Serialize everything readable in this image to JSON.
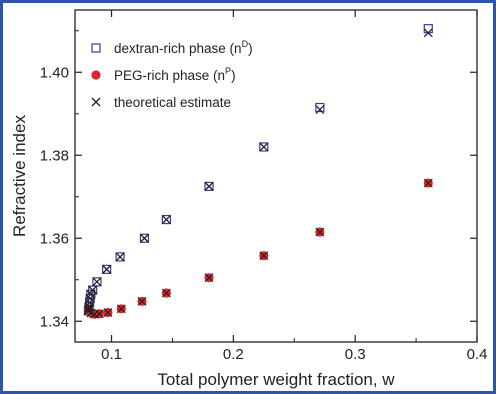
{
  "chart_data": {
    "type": "scatter",
    "xlabel": "Total polymer weight fraction, w",
    "ylabel": "Refractive index",
    "xlim": [
      0.07,
      0.4
    ],
    "ylim": [
      1.335,
      1.415
    ],
    "x_ticks": [
      0.1,
      0.2,
      0.3,
      0.4
    ],
    "x_tick_labels": [
      "0.1",
      "0.2",
      "0.3",
      "0.4"
    ],
    "y_ticks": [
      1.34,
      1.36,
      1.38,
      1.4
    ],
    "y_tick_labels": [
      "1.34",
      "1.36",
      "1.38",
      "1.40"
    ],
    "grid": false,
    "legend_position": "top-left",
    "series": [
      {
        "name": "dextran-rich phase (n",
        "name_sup": "D",
        "name_end": ")",
        "marker": "square-open",
        "color": "#3a3a9a",
        "points": [
          [
            0.081,
            1.3425
          ],
          [
            0.0815,
            1.3435
          ],
          [
            0.082,
            1.3445
          ],
          [
            0.0825,
            1.3455
          ],
          [
            0.083,
            1.3465
          ],
          [
            0.0845,
            1.3475
          ],
          [
            0.088,
            1.3495
          ],
          [
            0.096,
            1.3525
          ],
          [
            0.107,
            1.3555
          ],
          [
            0.127,
            1.36
          ],
          [
            0.145,
            1.3645
          ],
          [
            0.18,
            1.3725
          ],
          [
            0.225,
            1.382
          ],
          [
            0.271,
            1.3915
          ],
          [
            0.36,
            1.4105
          ]
        ]
      },
      {
        "name": "PEG-rich phase (n",
        "name_sup": "P",
        "name_end": ")",
        "marker": "circle-filled",
        "color": "#d9262e",
        "points": [
          [
            0.081,
            1.343
          ],
          [
            0.083,
            1.342
          ],
          [
            0.086,
            1.3417
          ],
          [
            0.09,
            1.3418
          ],
          [
            0.097,
            1.3421
          ],
          [
            0.108,
            1.343
          ],
          [
            0.125,
            1.3448
          ],
          [
            0.145,
            1.3468
          ],
          [
            0.18,
            1.3505
          ],
          [
            0.225,
            1.3558
          ],
          [
            0.271,
            1.3615
          ],
          [
            0.36,
            1.3733
          ]
        ]
      },
      {
        "name": "theoretical estimate",
        "marker": "cross",
        "color": "#222222",
        "points": [
          [
            0.081,
            1.3425
          ],
          [
            0.0815,
            1.3435
          ],
          [
            0.082,
            1.3445
          ],
          [
            0.0825,
            1.3455
          ],
          [
            0.083,
            1.3465
          ],
          [
            0.0845,
            1.3475
          ],
          [
            0.088,
            1.3495
          ],
          [
            0.096,
            1.3525
          ],
          [
            0.107,
            1.3555
          ],
          [
            0.127,
            1.36
          ],
          [
            0.145,
            1.3645
          ],
          [
            0.18,
            1.3725
          ],
          [
            0.225,
            1.382
          ],
          [
            0.271,
            1.391
          ],
          [
            0.36,
            1.4095
          ],
          [
            0.081,
            1.343
          ],
          [
            0.083,
            1.342
          ],
          [
            0.086,
            1.3417
          ],
          [
            0.09,
            1.3418
          ],
          [
            0.097,
            1.3421
          ],
          [
            0.108,
            1.343
          ],
          [
            0.125,
            1.3448
          ],
          [
            0.145,
            1.3468
          ],
          [
            0.18,
            1.3505
          ],
          [
            0.225,
            1.3558
          ],
          [
            0.271,
            1.3615
          ],
          [
            0.36,
            1.3733
          ]
        ]
      }
    ]
  }
}
